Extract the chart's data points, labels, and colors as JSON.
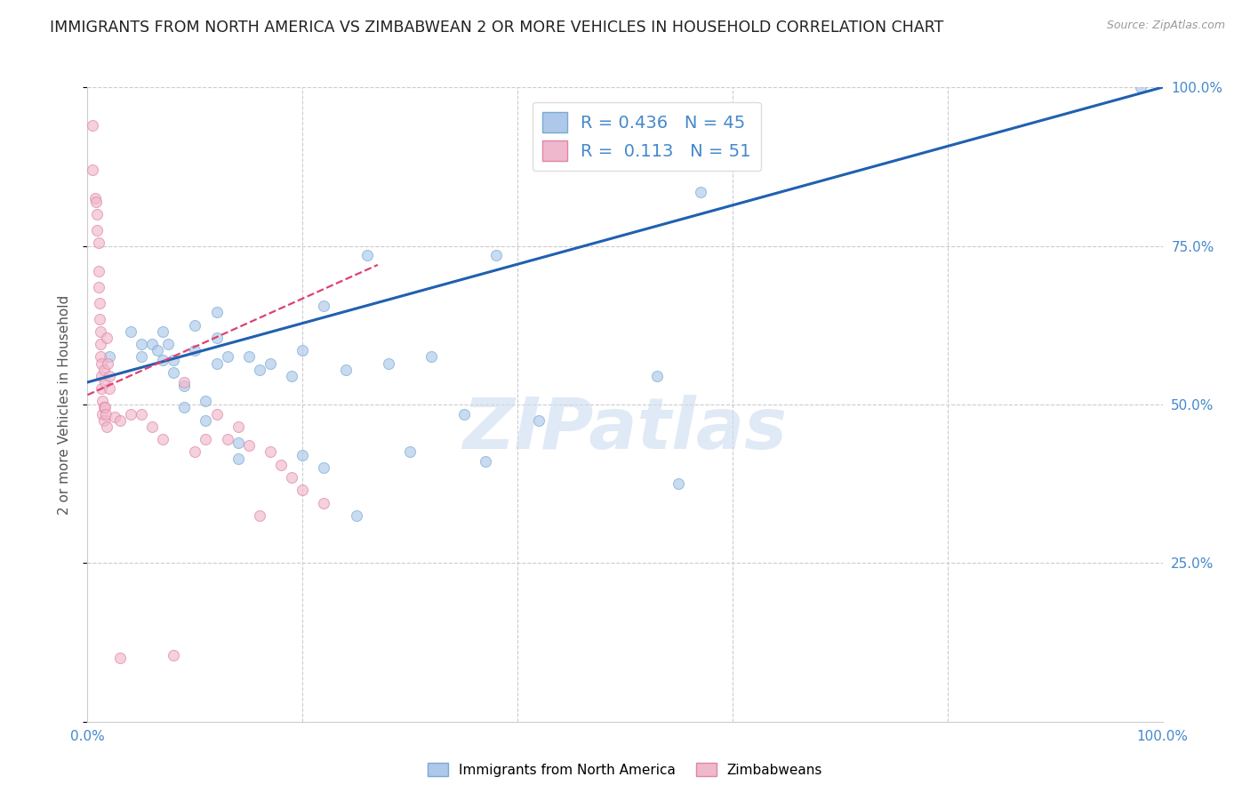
{
  "title": "IMMIGRANTS FROM NORTH AMERICA VS ZIMBABWEAN 2 OR MORE VEHICLES IN HOUSEHOLD CORRELATION CHART",
  "source": "Source: ZipAtlas.com",
  "ylabel": "2 or more Vehicles in Household",
  "watermark": "ZIPatlas",
  "blue_R": "0.436",
  "blue_N": "45",
  "pink_R": "0.113",
  "pink_N": "51",
  "legend_blue": "Immigrants from North America",
  "legend_pink": "Zimbabweans",
  "xlim": [
    0,
    1
  ],
  "ylim": [
    0,
    1
  ],
  "blue_color": "#adc8e8",
  "blue_edge": "#7aaad4",
  "blue_line_color": "#2060b0",
  "pink_color": "#f0b8cc",
  "pink_edge": "#e085a5",
  "pink_line_color": "#e04070",
  "grid_color": "#cccccc",
  "title_color": "#222222",
  "axis_color": "#4488cc",
  "right_tick_color": "#4488cc",
  "blue_points_x": [
    0.02,
    0.04,
    0.05,
    0.05,
    0.06,
    0.065,
    0.07,
    0.07,
    0.075,
    0.08,
    0.08,
    0.09,
    0.09,
    0.1,
    0.1,
    0.11,
    0.11,
    0.12,
    0.12,
    0.12,
    0.13,
    0.14,
    0.14,
    0.15,
    0.16,
    0.17,
    0.19,
    0.2,
    0.22,
    0.24,
    0.25,
    0.26,
    0.28,
    0.3,
    0.32,
    0.35,
    0.37,
    0.38,
    0.42,
    0.53,
    0.55,
    0.57,
    0.2,
    0.22,
    0.98
  ],
  "blue_points_y": [
    0.575,
    0.615,
    0.595,
    0.575,
    0.595,
    0.585,
    0.615,
    0.57,
    0.595,
    0.57,
    0.55,
    0.53,
    0.495,
    0.625,
    0.585,
    0.505,
    0.475,
    0.645,
    0.605,
    0.565,
    0.575,
    0.44,
    0.415,
    0.575,
    0.555,
    0.565,
    0.545,
    0.585,
    0.655,
    0.555,
    0.325,
    0.735,
    0.565,
    0.425,
    0.575,
    0.485,
    0.41,
    0.735,
    0.475,
    0.545,
    0.375,
    0.835,
    0.42,
    0.4,
    1.0
  ],
  "pink_points_x": [
    0.005,
    0.005,
    0.007,
    0.008,
    0.009,
    0.009,
    0.01,
    0.01,
    0.01,
    0.011,
    0.011,
    0.012,
    0.012,
    0.012,
    0.013,
    0.013,
    0.013,
    0.014,
    0.014,
    0.015,
    0.015,
    0.015,
    0.016,
    0.016,
    0.017,
    0.018,
    0.018,
    0.019,
    0.02,
    0.02,
    0.025,
    0.03,
    0.04,
    0.05,
    0.06,
    0.07,
    0.08,
    0.09,
    0.1,
    0.11,
    0.12,
    0.13,
    0.14,
    0.15,
    0.16,
    0.17,
    0.18,
    0.19,
    0.2,
    0.22,
    0.03
  ],
  "pink_points_y": [
    0.94,
    0.87,
    0.825,
    0.82,
    0.8,
    0.775,
    0.755,
    0.71,
    0.685,
    0.66,
    0.635,
    0.615,
    0.595,
    0.575,
    0.565,
    0.545,
    0.525,
    0.505,
    0.485,
    0.495,
    0.475,
    0.555,
    0.535,
    0.495,
    0.485,
    0.465,
    0.605,
    0.565,
    0.545,
    0.525,
    0.48,
    0.475,
    0.485,
    0.485,
    0.465,
    0.445,
    0.105,
    0.535,
    0.425,
    0.445,
    0.485,
    0.445,
    0.465,
    0.435,
    0.325,
    0.425,
    0.405,
    0.385,
    0.365,
    0.345,
    0.1
  ],
  "marker_size": 75,
  "marker_alpha": 0.65,
  "blue_trendline_x": [
    0.0,
    1.0
  ],
  "blue_trendline_y": [
    0.535,
    1.0
  ],
  "pink_trendline_x": [
    0.0,
    0.27
  ],
  "pink_trendline_y": [
    0.515,
    0.72
  ]
}
